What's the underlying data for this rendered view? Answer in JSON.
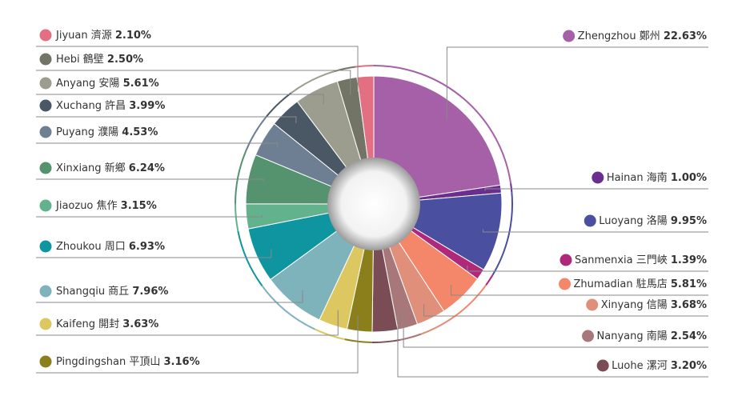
{
  "chart_data": {
    "type": "donut",
    "categories": [
      "Zhengzhou 鄭州",
      "Hainan 海南",
      "Luoyang 洛陽",
      "Sanmenxia 三門峽",
      "Zhumadian 駐馬店",
      "Xinyang 信陽",
      "Nanyang 南陽",
      "Luohe 漯河",
      "Pingdingshan 平頂山",
      "Kaifeng 開封",
      "Shangqiu 商丘",
      "Zhoukou 周口",
      "Jiaozuo 焦作",
      "Xinxiang 新鄉",
      "Puyang 濮陽",
      "Xuchang 許昌",
      "Anyang 安陽",
      "Hebi 鶴壁",
      "Jiyuan 濟源"
    ],
    "values": [
      22.63,
      1.0,
      9.95,
      1.39,
      5.81,
      3.68,
      2.54,
      3.2,
      3.16,
      3.63,
      7.96,
      6.93,
      3.15,
      6.24,
      4.53,
      3.99,
      5.61,
      2.5,
      2.1
    ],
    "value_labels": [
      "22.63%",
      "1.00%",
      "9.95%",
      "1.39%",
      "5.81%",
      "3.68%",
      "2.54%",
      "3.20%",
      "3.16%",
      "3.63%",
      "7.96%",
      "6.93%",
      "3.15%",
      "6.24%",
      "4.53%",
      "3.99%",
      "5.61%",
      "2.50%",
      "2.10%"
    ],
    "colors": [
      "#a660a8",
      "#6a2f8e",
      "#4a4fa0",
      "#b0287a",
      "#f4876a",
      "#e0907a",
      "#a8777a",
      "#7a4c55",
      "#8a7f1a",
      "#dcc760",
      "#7fb3bc",
      "#0e95a0",
      "#62b38d",
      "#55926e",
      "#6f7f93",
      "#4a5866",
      "#9c9d8e",
      "#727565",
      "#e26f82"
    ]
  }
}
